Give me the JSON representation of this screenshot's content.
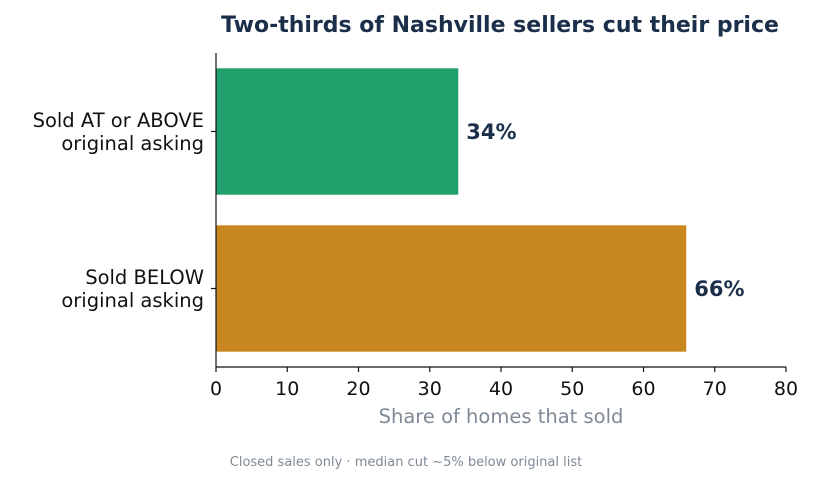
{
  "chart_data": {
    "type": "bar",
    "orientation": "horizontal",
    "title": "Two-thirds of Nashville sellers cut their price",
    "categories": [
      [
        "Sold AT or ABOVE",
        "original asking"
      ],
      [
        "Sold BELOW",
        "original asking"
      ]
    ],
    "values": [
      34,
      66
    ],
    "data_labels": [
      "34%",
      "66%"
    ],
    "colors": [
      "#21a06d",
      "#c8881f"
    ],
    "xlabel": "Share of homes that sold",
    "ylabel": "",
    "xlim": [
      0,
      80
    ],
    "xticks": [
      0,
      10,
      20,
      30,
      40,
      50,
      60,
      70,
      80
    ],
    "grid": false,
    "legend": "none",
    "note": "Closed sales only · median cut ~5% below original list"
  }
}
